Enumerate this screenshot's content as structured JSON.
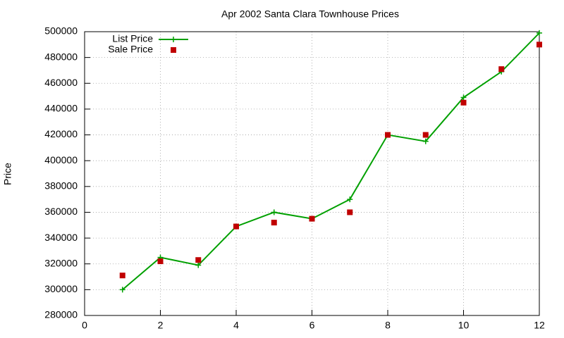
{
  "chart_data": {
    "type": "line",
    "title": "Apr 2002 Santa Clara Townhouse Prices",
    "y_label": "Price",
    "x": [
      1,
      2,
      3,
      4,
      5,
      6,
      7,
      8,
      9,
      10,
      11,
      12
    ],
    "series": [
      {
        "name": "List Price",
        "color": "#00a000",
        "line": true,
        "marker": "plus",
        "values": [
          300000,
          325000,
          319000,
          349000,
          360000,
          355000,
          370000,
          420000,
          415000,
          449000,
          469000,
          499000
        ]
      },
      {
        "name": "Sale Price",
        "color": "#c00000",
        "line": false,
        "marker": "square",
        "values": [
          311000,
          322000,
          323000,
          349000,
          352000,
          355000,
          360000,
          420000,
          420000,
          445000,
          471000,
          490000
        ]
      }
    ],
    "xlim": [
      0,
      12
    ],
    "xticks": [
      0,
      2,
      4,
      6,
      8,
      10,
      12
    ],
    "ylim": [
      280000,
      500000
    ],
    "yticks": [
      280000,
      300000,
      320000,
      340000,
      360000,
      380000,
      400000,
      420000,
      440000,
      460000,
      480000,
      500000
    ],
    "grid": true,
    "legend": "top-left"
  }
}
